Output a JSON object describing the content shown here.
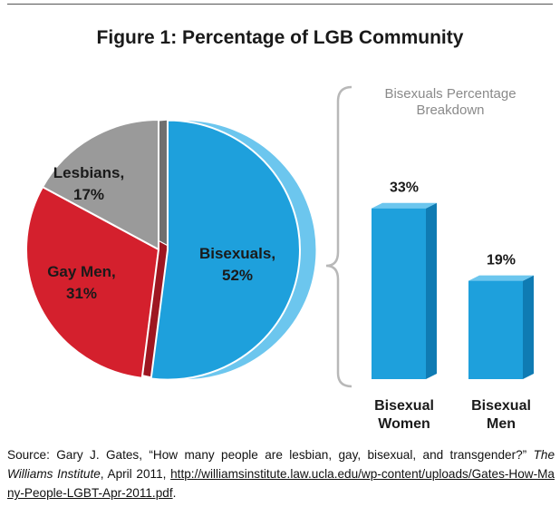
{
  "figure": {
    "title": "Figure 1: Percentage of LGB Community"
  },
  "chart_data": [
    {
      "type": "pie",
      "labels": [
        "Bisexuals",
        "Gay Men",
        "Lesbians"
      ],
      "values": [
        52,
        31,
        17
      ],
      "data_labels": [
        "52%",
        "31%",
        "17%"
      ],
      "colors": [
        "#1ea0dc",
        "#d4202d",
        "#9a9a9a"
      ],
      "exploded": "Bisexuals"
    },
    {
      "type": "bar",
      "title": "Bisexuals Percentage Breakdown",
      "categories": [
        "Bisexual Women",
        "Bisexual Men"
      ],
      "category_lines": [
        [
          "Bisexual",
          "Women"
        ],
        [
          "Bisexual",
          "Men"
        ]
      ],
      "values": [
        33,
        19
      ],
      "data_labels": [
        "33%",
        "19%"
      ],
      "ylim": [
        0,
        40
      ],
      "color": "#1ea0dc"
    }
  ],
  "source": {
    "prefix": "Source: Gary J. Gates, “How many people are lesbian, gay, bisexual, and transgender?”",
    "publisher": "The Williams Institute",
    "date": ", April 2011,",
    "url": "http://williamsinstitute.law.ucla.edu/wp-content/uploads/Gates-How-Many-People-LGBT-Apr-2011.pdf",
    "suffix": "."
  },
  "colors": {
    "blue": "#1ea0dc",
    "blue_dark": "#0f7bb3",
    "blue_light": "#6cc6ee",
    "red": "#d4202d",
    "red_dark": "#9e1621",
    "gray": "#9a9a9a",
    "gray_dark": "#6f6f6f",
    "bracket": "#b8b8b8",
    "text_gray": "#8a8a8a"
  }
}
